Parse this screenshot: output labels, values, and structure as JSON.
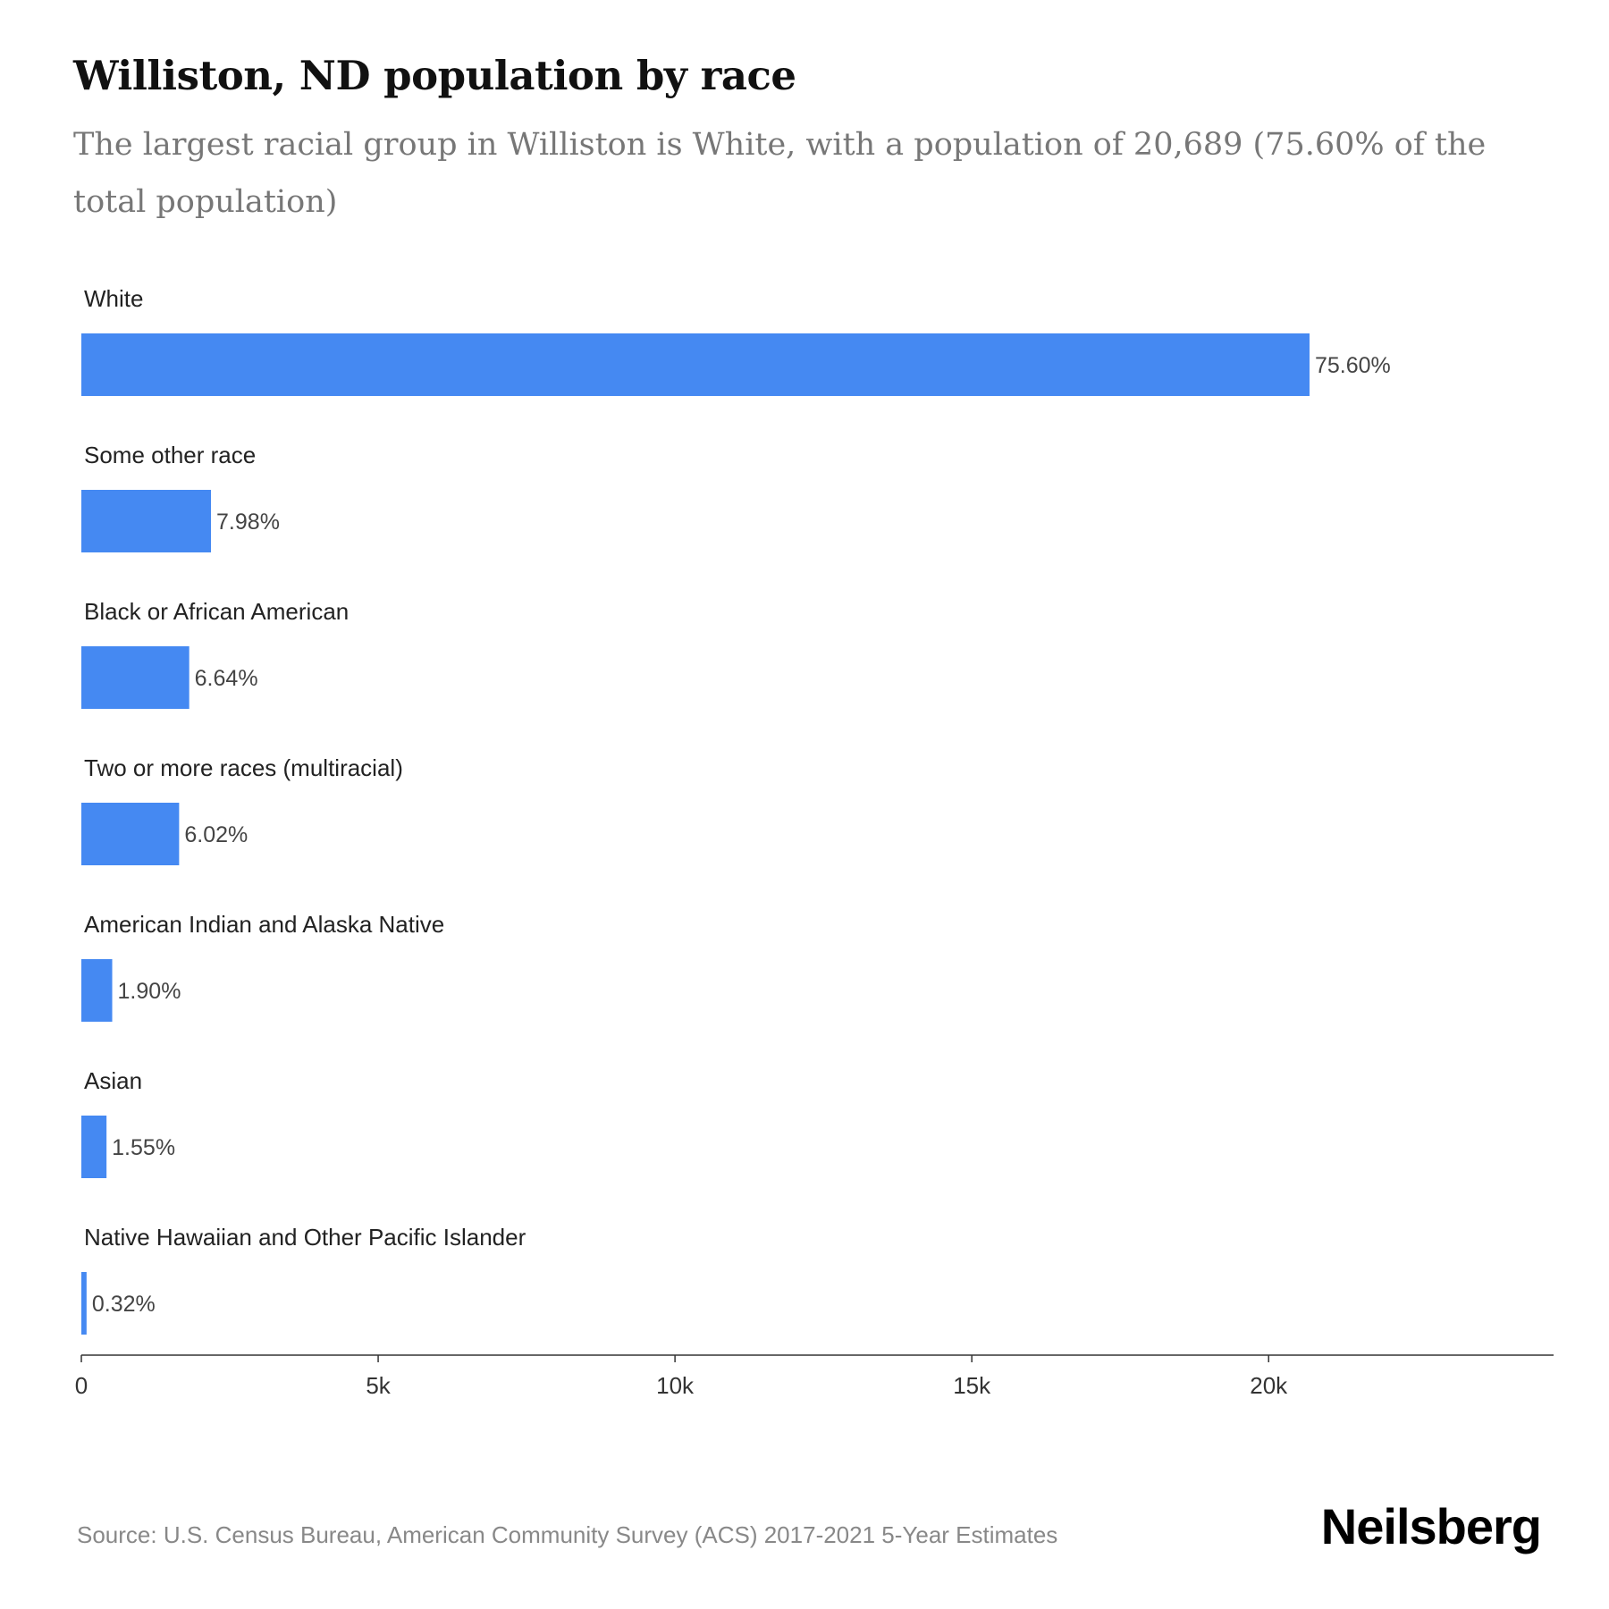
{
  "header": {
    "title": "Williston, ND population by race",
    "subtitle": "The largest racial group in Williston is White, with a population of 20,689 (75.60% of the total population)"
  },
  "chart_data": {
    "type": "bar",
    "orientation": "horizontal",
    "categories": [
      "White",
      "Some other race",
      "Black or African American",
      "Two or more races (multiracial)",
      "American Indian and Alaska Native",
      "Asian",
      "Native Hawaiian and Other Pacific Islander"
    ],
    "values": [
      20689,
      2184,
      1817,
      1647,
      520,
      424,
      88
    ],
    "labels": [
      "75.60%",
      "7.98%",
      "6.64%",
      "6.02%",
      "1.90%",
      "1.55%",
      "0.32%"
    ],
    "x_ticks": [
      {
        "value": 0,
        "label": "0"
      },
      {
        "value": 5000,
        "label": "5k"
      },
      {
        "value": 10000,
        "label": "10k"
      },
      {
        "value": 15000,
        "label": "15k"
      },
      {
        "value": 20000,
        "label": "20k"
      }
    ],
    "xlim": [
      0,
      24800
    ],
    "bar_color": "#4589f2",
    "grid": false,
    "legend": "none"
  },
  "footer": {
    "source": "Source: U.S. Census Bureau, American Community Survey (ACS) 2017-2021 5-Year Estimates",
    "brand": "Neilsberg"
  }
}
